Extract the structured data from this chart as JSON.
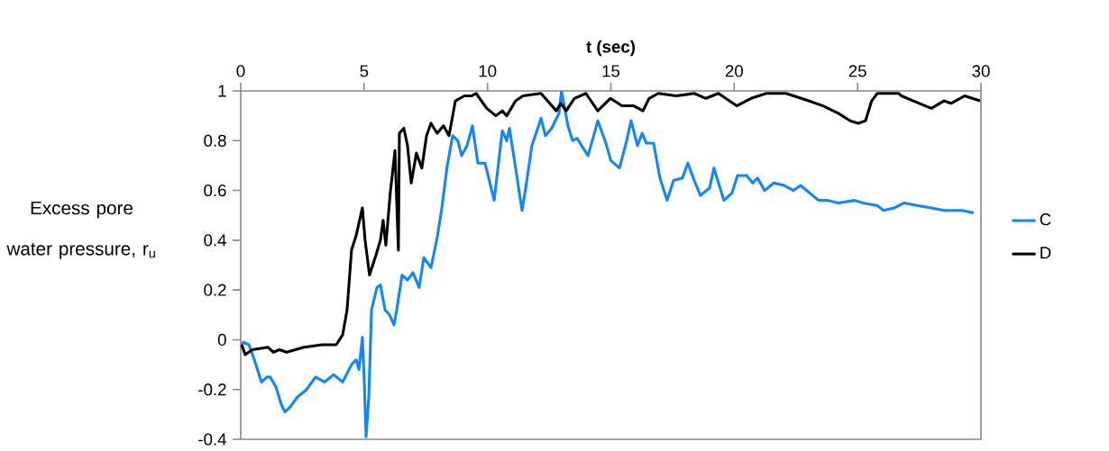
{
  "chart_data": {
    "type": "line",
    "xlabel": "**t  (sec)**",
    "ylabel": "Excess pore water pressure, r$_{u}$",
    "xlim": [
      0,
      30
    ],
    "xticks": [
      0,
      5,
      10,
      15,
      20,
      25,
      30
    ],
    "ylim": [
      -0.4,
      1
    ],
    "yticks": [
      -0.4,
      -0.2,
      0,
      0.2,
      0.4,
      0.6,
      0.8,
      1
    ],
    "legend": "right",
    "series": [
      {
        "name": "C",
        "color": "#0f86ff",
        "x": [
          0,
          0.11,
          0.33,
          0.55,
          0.84,
          1.06,
          1.2,
          1.43,
          1.64,
          1.79,
          2.0,
          2.3,
          2.67,
          3.03,
          3.4,
          3.76,
          4.13,
          4.49,
          4.68,
          4.79,
          4.93,
          5.0,
          5.08,
          5.19,
          5.3,
          5.52,
          5.66,
          5.85,
          6.03,
          6.21,
          6.32,
          6.54,
          6.76,
          6.98,
          7.23,
          7.42,
          7.71,
          7.96,
          8.15,
          8.37,
          8.59,
          8.8,
          8.95,
          9.17,
          9.39,
          9.61,
          9.9,
          10.27,
          10.6,
          10.78,
          10.89,
          11.14,
          11.4,
          11.55,
          11.8,
          12.17,
          12.35,
          12.6,
          12.9,
          13.0,
          13.26,
          13.45,
          13.63,
          14.07,
          14.25,
          14.47,
          14.8,
          15.0,
          15.35,
          15.64,
          15.82,
          16.08,
          16.27,
          16.44,
          16.73,
          16.99,
          17.28,
          17.54,
          17.9,
          18.12,
          18.38,
          18.63,
          19.0,
          19.18,
          19.58,
          19.91,
          20.13,
          20.5,
          20.75,
          20.94,
          21.23,
          21.6,
          22.03,
          22.4,
          22.69,
          23.42,
          23.79,
          24.22,
          24.88,
          25.21,
          25.79,
          26.05,
          26.49,
          26.89,
          27.4,
          27.99,
          28.5,
          29.23,
          29.7
        ],
        "values": [
          -0.03,
          -0.01,
          -0.02,
          -0.08,
          -0.17,
          -0.15,
          -0.15,
          -0.19,
          -0.26,
          -0.29,
          -0.27,
          -0.23,
          -0.2,
          -0.15,
          -0.17,
          -0.14,
          -0.17,
          -0.1,
          -0.08,
          -0.12,
          0.01,
          -0.15,
          -0.39,
          -0.23,
          0.12,
          0.21,
          0.22,
          0.12,
          0.1,
          0.06,
          0.12,
          0.26,
          0.24,
          0.27,
          0.21,
          0.33,
          0.29,
          0.41,
          0.53,
          0.7,
          0.82,
          0.8,
          0.74,
          0.78,
          0.86,
          0.71,
          0.71,
          0.56,
          0.84,
          0.8,
          0.85,
          0.69,
          0.52,
          0.61,
          0.78,
          0.89,
          0.82,
          0.85,
          0.91,
          1.0,
          0.86,
          0.8,
          0.81,
          0.74,
          0.8,
          0.88,
          0.79,
          0.72,
          0.69,
          0.8,
          0.88,
          0.78,
          0.83,
          0.79,
          0.79,
          0.65,
          0.56,
          0.64,
          0.65,
          0.71,
          0.64,
          0.58,
          0.61,
          0.69,
          0.56,
          0.59,
          0.66,
          0.66,
          0.63,
          0.65,
          0.6,
          0.63,
          0.62,
          0.6,
          0.62,
          0.56,
          0.56,
          0.55,
          0.56,
          0.55,
          0.54,
          0.52,
          0.53,
          0.55,
          0.54,
          0.53,
          0.52,
          0.52,
          0.51
        ]
      },
      {
        "name": "D",
        "color": "#000000",
        "x": [
          0.04,
          0.18,
          0.47,
          1.1,
          1.32,
          1.57,
          1.86,
          2.56,
          3.29,
          3.87,
          4.13,
          4.31,
          4.49,
          4.68,
          4.93,
          5.04,
          5.22,
          5.48,
          5.66,
          5.77,
          5.88,
          6.06,
          6.25,
          6.39,
          6.43,
          6.61,
          6.76,
          6.91,
          7.12,
          7.34,
          7.53,
          7.71,
          7.96,
          8.22,
          8.44,
          8.7,
          9.06,
          9.35,
          9.54,
          9.97,
          10.34,
          10.6,
          10.78,
          11.14,
          11.44,
          12.17,
          12.79,
          12.97,
          13.19,
          13.52,
          13.99,
          14.47,
          14.98,
          15.45,
          15.93,
          16.3,
          16.55,
          16.92,
          17.65,
          18.38,
          18.85,
          19.36,
          20.1,
          20.68,
          21.3,
          22.1,
          23.02,
          23.6,
          24.22,
          24.7,
          25.03,
          25.32,
          25.57,
          25.8,
          26.67,
          26.78,
          27.26,
          27.99,
          28.5,
          28.79,
          29.34,
          29.96
        ],
        "values": [
          -0.02,
          -0.06,
          -0.04,
          -0.03,
          -0.05,
          -0.04,
          -0.05,
          -0.03,
          -0.02,
          -0.02,
          0.02,
          0.12,
          0.36,
          0.42,
          0.53,
          0.4,
          0.26,
          0.34,
          0.4,
          0.48,
          0.38,
          0.59,
          0.76,
          0.36,
          0.83,
          0.85,
          0.78,
          0.63,
          0.75,
          0.69,
          0.82,
          0.87,
          0.83,
          0.86,
          0.82,
          0.96,
          0.98,
          0.98,
          0.99,
          0.93,
          0.9,
          0.92,
          0.9,
          0.96,
          0.98,
          0.99,
          0.92,
          0.95,
          0.92,
          0.97,
          0.99,
          0.92,
          0.97,
          0.94,
          0.94,
          0.92,
          0.97,
          0.99,
          0.98,
          0.99,
          0.97,
          0.99,
          0.94,
          0.97,
          0.99,
          0.99,
          0.96,
          0.94,
          0.91,
          0.88,
          0.87,
          0.88,
          0.96,
          0.99,
          0.99,
          0.98,
          0.96,
          0.93,
          0.96,
          0.95,
          0.98,
          0.96
        ]
      }
    ]
  }
}
